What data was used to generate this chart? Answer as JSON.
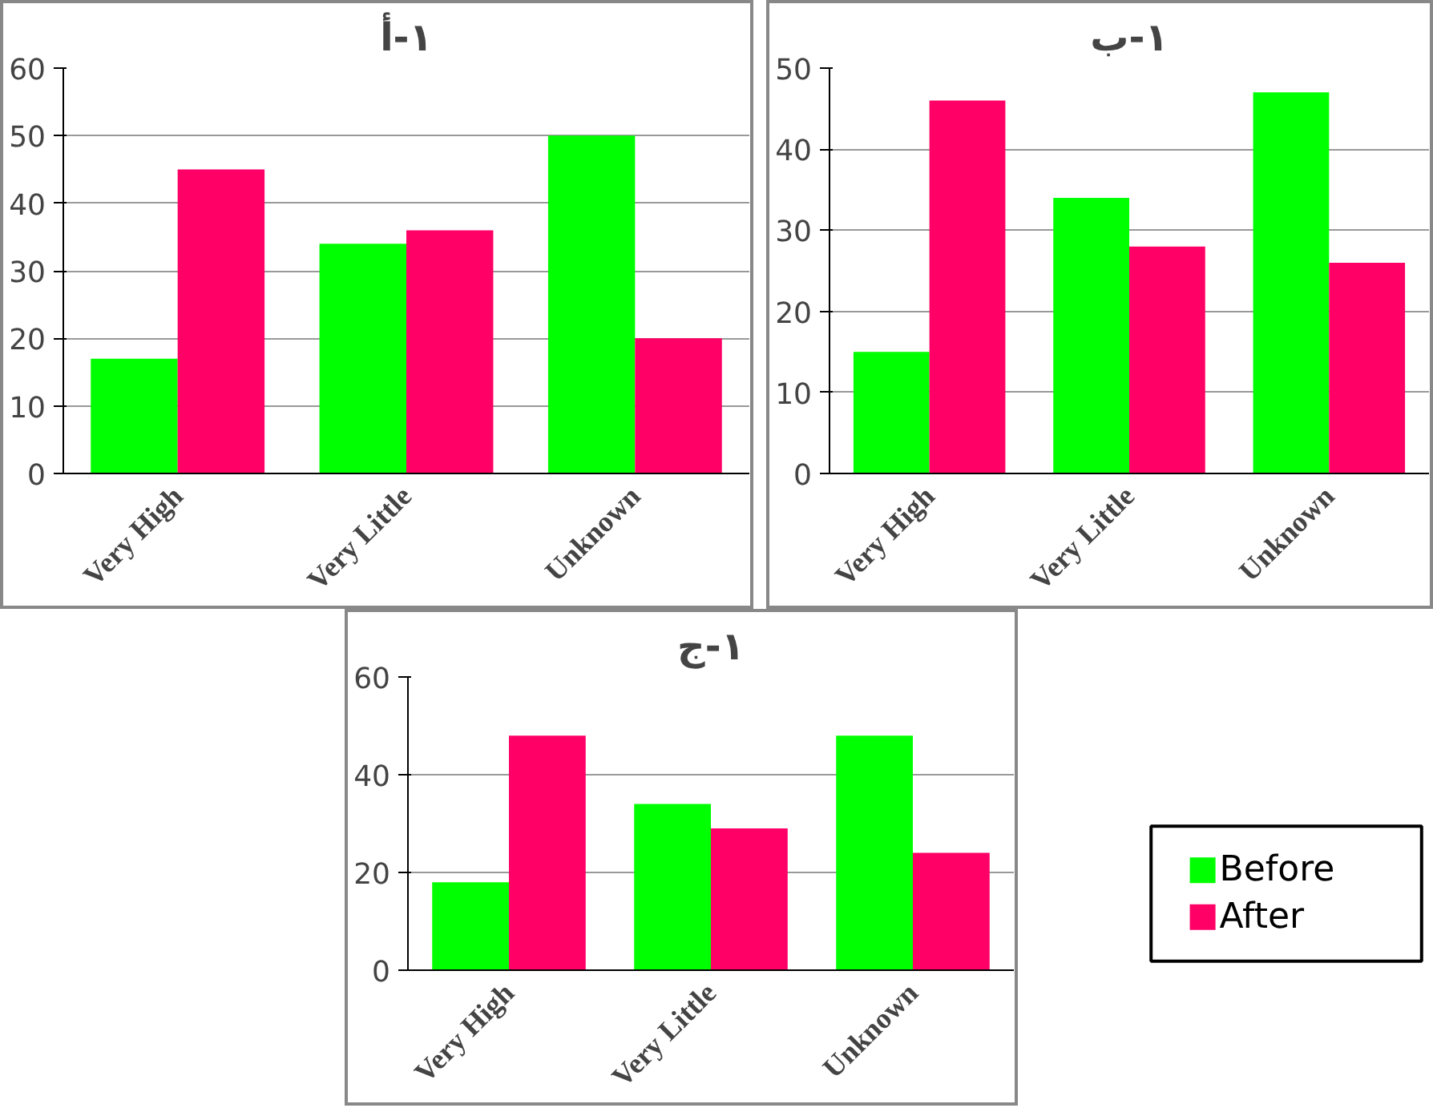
{
  "chart_data": [
    {
      "type": "bar",
      "title": "١-أ",
      "categories": [
        "Very High",
        "Very Little",
        "Unknown"
      ],
      "ylim": [
        0,
        60
      ],
      "yticks": [
        0,
        10,
        20,
        30,
        40,
        50,
        60
      ],
      "grid": "y",
      "series": [
        {
          "color": "#00ff00",
          "values": [
            17,
            34,
            50
          ]
        },
        {
          "color": "#ff0066",
          "values": [
            45,
            36,
            20
          ]
        }
      ]
    },
    {
      "type": "bar",
      "title": "١-ب",
      "categories": [
        "Very High",
        "Very Little",
        "Unknown"
      ],
      "ylim": [
        0,
        50
      ],
      "yticks": [
        0,
        10,
        20,
        30,
        40,
        50
      ],
      "grid": "y",
      "series": [
        {
          "color": "#00ff00",
          "values": [
            15,
            34,
            47
          ]
        },
        {
          "color": "#ff0066",
          "values": [
            46,
            28,
            26
          ]
        }
      ]
    },
    {
      "type": "bar",
      "title": "١-ج",
      "categories": [
        "Very High",
        "Very Little",
        "Unknown"
      ],
      "ylim": [
        0,
        60
      ],
      "yticks": [
        0,
        20,
        40,
        60
      ],
      "grid": "y",
      "legend": "right",
      "series": [
        {
          "name": "Before",
          "color": "#00ff00",
          "values": [
            18,
            34,
            48
          ]
        },
        {
          "name": "After",
          "color": "#ff0066",
          "values": [
            48,
            29,
            24
          ]
        }
      ]
    }
  ]
}
